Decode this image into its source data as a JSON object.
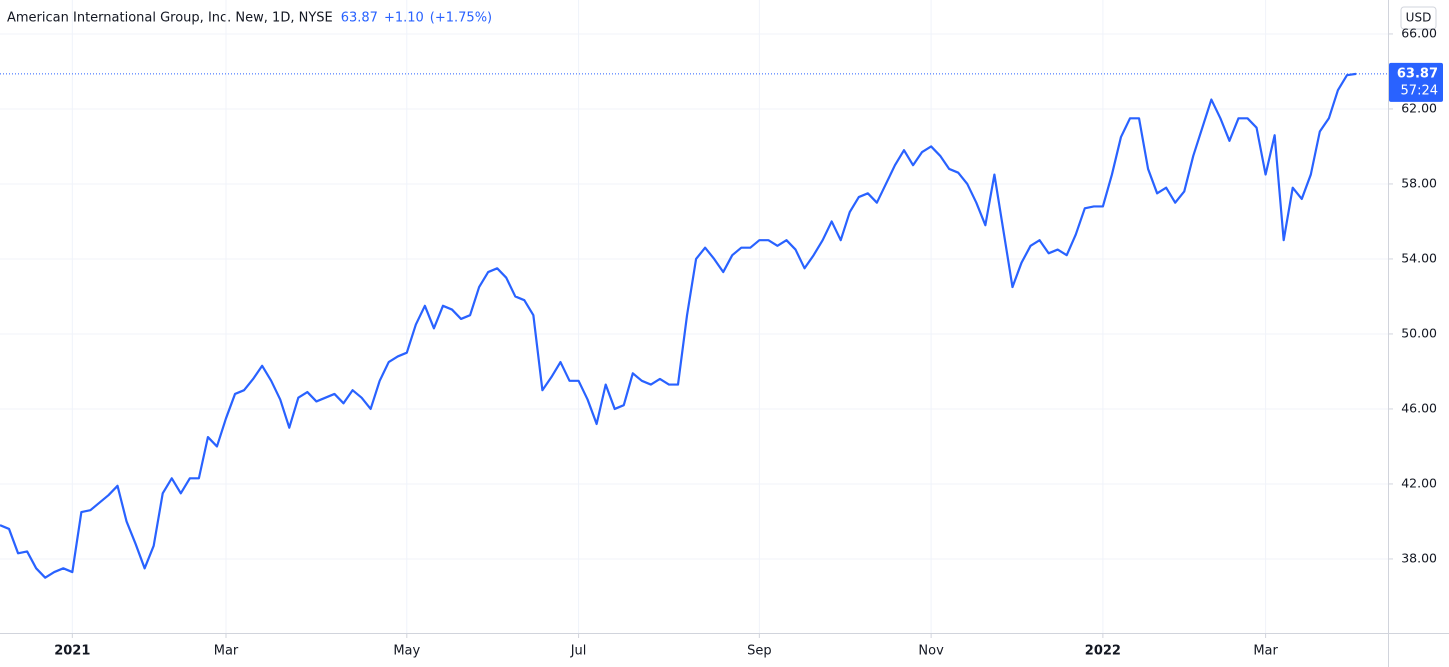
{
  "chart_data": {
    "type": "line",
    "title": "American International Group, Inc. New, 1D, NYSE",
    "change": "+1.10",
    "change_percent": "(+1.75%)",
    "currency": "USD",
    "countdown": "57:24",
    "color": "#2962ff",
    "grid": true,
    "ylim": [
      34.05,
      67.81
    ],
    "yticks": [
      {
        "value": 38,
        "label": "38.00"
      },
      {
        "value": 42,
        "label": "42.00"
      },
      {
        "value": 46,
        "label": "46.00"
      },
      {
        "value": 50,
        "label": "50.00"
      },
      {
        "value": 54,
        "label": "54.00"
      },
      {
        "value": 58,
        "label": "58.00"
      },
      {
        "value": 62,
        "label": "62.00"
      },
      {
        "value": 66,
        "label": "66.00"
      }
    ],
    "categories": [
      null,
      null,
      null,
      null,
      null,
      null,
      null,
      null,
      "2021",
      null,
      null,
      null,
      null,
      null,
      null,
      null,
      null,
      null,
      null,
      null,
      null,
      null,
      null,
      null,
      null,
      "Mar",
      null,
      null,
      null,
      null,
      null,
      null,
      null,
      null,
      null,
      null,
      null,
      null,
      null,
      null,
      null,
      null,
      null,
      null,
      null,
      "May",
      null,
      null,
      null,
      null,
      null,
      null,
      null,
      null,
      null,
      null,
      null,
      null,
      null,
      null,
      null,
      null,
      null,
      null,
      "Jul",
      null,
      null,
      null,
      null,
      null,
      null,
      null,
      null,
      null,
      null,
      null,
      null,
      null,
      null,
      null,
      null,
      null,
      null,
      null,
      "Sep",
      null,
      null,
      null,
      null,
      null,
      null,
      null,
      null,
      null,
      null,
      null,
      null,
      null,
      null,
      null,
      null,
      null,
      null,
      "Nov",
      null,
      null,
      null,
      null,
      null,
      null,
      null,
      null,
      null,
      null,
      null,
      null,
      null,
      null,
      null,
      null,
      null,
      null,
      "2022",
      null,
      null,
      null,
      null,
      null,
      null,
      null,
      null,
      null,
      null,
      null,
      null,
      null,
      null,
      null,
      null,
      null,
      "Mar",
      null,
      null,
      null,
      null,
      null,
      null,
      null,
      null,
      null,
      null
    ],
    "values": [
      39.8,
      39.6,
      38.3,
      38.4,
      37.5,
      37.0,
      37.3,
      37.5,
      37.3,
      40.5,
      40.6,
      41.0,
      41.4,
      41.9,
      40.0,
      38.8,
      37.5,
      38.7,
      41.5,
      42.3,
      41.5,
      42.3,
      42.3,
      44.5,
      44.0,
      45.5,
      46.8,
      47.0,
      47.6,
      48.3,
      47.5,
      46.5,
      45.0,
      46.6,
      46.9,
      46.4,
      46.6,
      46.8,
      46.3,
      47.0,
      46.6,
      46.0,
      47.5,
      48.5,
      48.8,
      49.0,
      50.5,
      51.5,
      50.3,
      51.5,
      51.3,
      50.8,
      51.0,
      52.5,
      53.3,
      53.5,
      53.0,
      52.0,
      51.8,
      51.0,
      47.0,
      47.7,
      48.5,
      47.5,
      47.5,
      46.5,
      45.2,
      47.3,
      46.0,
      46.2,
      47.9,
      47.5,
      47.3,
      47.6,
      47.3,
      47.3,
      51.0,
      54.0,
      54.6,
      54.0,
      53.3,
      54.2,
      54.6,
      54.6,
      55.0,
      55.0,
      54.7,
      55.0,
      54.5,
      53.5,
      54.2,
      55.0,
      56.0,
      55.0,
      56.5,
      57.3,
      57.5,
      57.0,
      58.0,
      59.0,
      59.8,
      59.0,
      59.7,
      60.0,
      59.5,
      58.8,
      58.6,
      58.0,
      57.0,
      55.8,
      58.5,
      55.5,
      52.5,
      53.8,
      54.7,
      55.0,
      54.3,
      54.5,
      54.2,
      55.3,
      56.7,
      56.8,
      56.8,
      58.5,
      60.5,
      61.5,
      61.5,
      58.8,
      57.5,
      57.8,
      57.0,
      57.6,
      59.5,
      61.0,
      62.5,
      61.5,
      60.3,
      61.5,
      61.5,
      61.0,
      58.5,
      60.6,
      55.0,
      57.8,
      57.2,
      58.5,
      60.8,
      61.5,
      63.0,
      63.8,
      63.87
    ]
  }
}
